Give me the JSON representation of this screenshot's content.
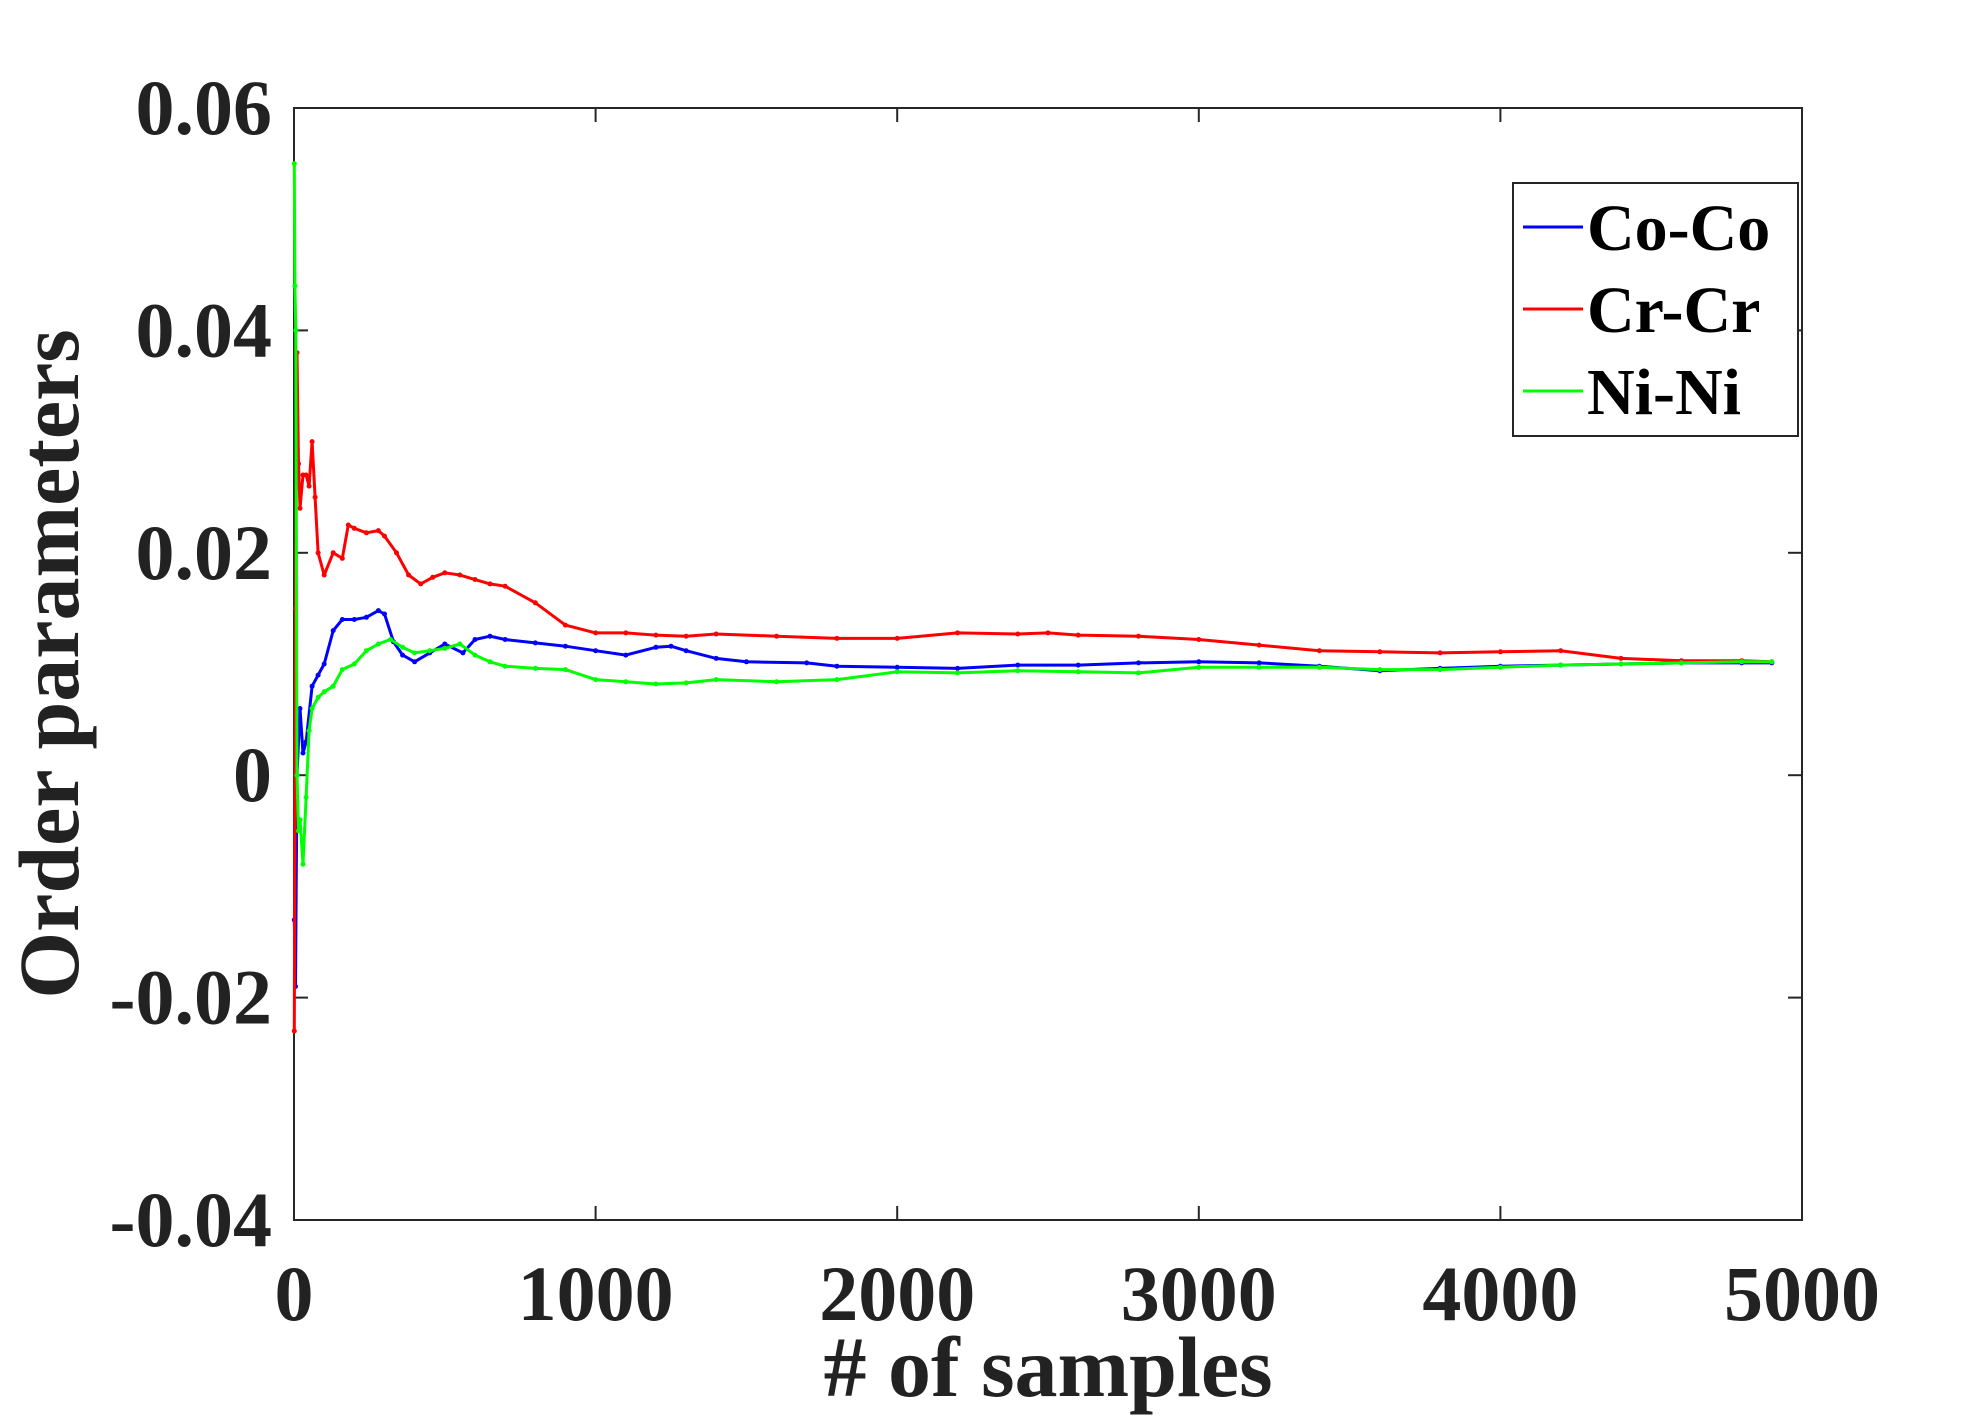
{
  "chart_data": {
    "type": "line",
    "title": "",
    "xlabel": "# of samples",
    "ylabel": "Order parameters",
    "xlim": [
      0,
      5000
    ],
    "ylim": [
      -0.04,
      0.06
    ],
    "xticks": [
      0,
      1000,
      2000,
      3000,
      4000,
      5000
    ],
    "xtick_labels": [
      "0",
      "1000",
      "2000",
      "3000",
      "4000",
      "5000"
    ],
    "yticks": [
      -0.04,
      -0.02,
      0,
      0.02,
      0.04,
      0.06
    ],
    "ytick_labels": [
      "-0.04",
      "-0.02",
      "0",
      "0.02",
      "0.04",
      "0.06"
    ],
    "grid": false,
    "legend_position": "top-right",
    "series": [
      {
        "name": "Co-Co",
        "color": "#0000ff",
        "x": [
          1,
          5,
          10,
          20,
          30,
          40,
          60,
          80,
          100,
          130,
          160,
          200,
          240,
          280,
          300,
          330,
          360,
          400,
          450,
          500,
          560,
          600,
          650,
          700,
          800,
          900,
          1000,
          1100,
          1200,
          1250,
          1300,
          1400,
          1500,
          1700,
          1800,
          2000,
          2200,
          2400,
          2600,
          2800,
          3000,
          3200,
          3400,
          3600,
          3800,
          4000,
          4200,
          4400,
          4600,
          4800,
          4900
        ],
        "y": [
          -0.013,
          -0.019,
          0.0,
          0.006,
          0.002,
          0.003,
          0.008,
          0.009,
          0.01,
          0.013,
          0.014,
          0.014,
          0.0142,
          0.0148,
          0.0145,
          0.012,
          0.0108,
          0.0102,
          0.011,
          0.0118,
          0.011,
          0.0122,
          0.0125,
          0.0122,
          0.0119,
          0.0116,
          0.0112,
          0.0108,
          0.0115,
          0.0116,
          0.0112,
          0.0105,
          0.0102,
          0.0101,
          0.0098,
          0.0097,
          0.0096,
          0.0099,
          0.0099,
          0.0101,
          0.0102,
          0.0101,
          0.0098,
          0.0094,
          0.0096,
          0.0098,
          0.0099,
          0.01,
          0.0101,
          0.0101,
          0.0101
        ]
      },
      {
        "name": "Cr-Cr",
        "color": "#ff0000",
        "x": [
          1,
          5,
          10,
          15,
          20,
          30,
          40,
          50,
          60,
          70,
          80,
          100,
          130,
          160,
          180,
          200,
          240,
          280,
          300,
          340,
          380,
          420,
          460,
          500,
          550,
          600,
          650,
          700,
          800,
          900,
          1000,
          1100,
          1200,
          1300,
          1400,
          1600,
          1800,
          2000,
          2200,
          2400,
          2500,
          2600,
          2800,
          3000,
          3200,
          3400,
          3600,
          3800,
          4000,
          4200,
          4400,
          4600,
          4800,
          4900
        ],
        "y": [
          -0.023,
          0.015,
          0.038,
          0.028,
          0.024,
          0.027,
          0.027,
          0.026,
          0.03,
          0.025,
          0.02,
          0.018,
          0.02,
          0.0195,
          0.0225,
          0.0222,
          0.0218,
          0.022,
          0.0215,
          0.02,
          0.018,
          0.0172,
          0.0178,
          0.0182,
          0.018,
          0.0176,
          0.0172,
          0.017,
          0.0155,
          0.0135,
          0.0128,
          0.0128,
          0.0126,
          0.0125,
          0.0127,
          0.0125,
          0.0123,
          0.0123,
          0.0128,
          0.0127,
          0.0128,
          0.0126,
          0.0125,
          0.0122,
          0.0117,
          0.0112,
          0.0111,
          0.011,
          0.0111,
          0.0112,
          0.0105,
          0.0103,
          0.0103,
          0.0102
        ]
      },
      {
        "name": "Ni-Ni",
        "color": "#00ff00",
        "x": [
          1,
          3,
          6,
          10,
          15,
          20,
          30,
          40,
          50,
          60,
          80,
          100,
          130,
          160,
          200,
          240,
          280,
          320,
          360,
          400,
          450,
          500,
          550,
          600,
          650,
          700,
          800,
          900,
          1000,
          1100,
          1200,
          1300,
          1400,
          1600,
          1800,
          2000,
          2200,
          2400,
          2600,
          2800,
          3000,
          3200,
          3400,
          3600,
          3800,
          4000,
          4200,
          4400,
          4600,
          4800,
          4900
        ],
        "y": [
          0.055,
          0.044,
          0.04,
          0.0,
          -0.005,
          -0.004,
          -0.008,
          -0.002,
          0.004,
          0.006,
          0.007,
          0.0075,
          0.008,
          0.0095,
          0.01,
          0.0112,
          0.0118,
          0.0122,
          0.0115,
          0.011,
          0.0112,
          0.0114,
          0.0118,
          0.0108,
          0.0102,
          0.0098,
          0.0096,
          0.0095,
          0.0086,
          0.0084,
          0.0082,
          0.0083,
          0.0086,
          0.0084,
          0.0086,
          0.0093,
          0.0092,
          0.0094,
          0.0093,
          0.0092,
          0.0097,
          0.0097,
          0.0097,
          0.0095,
          0.0095,
          0.0097,
          0.0099,
          0.01,
          0.0101,
          0.0102,
          0.0102
        ]
      }
    ]
  }
}
